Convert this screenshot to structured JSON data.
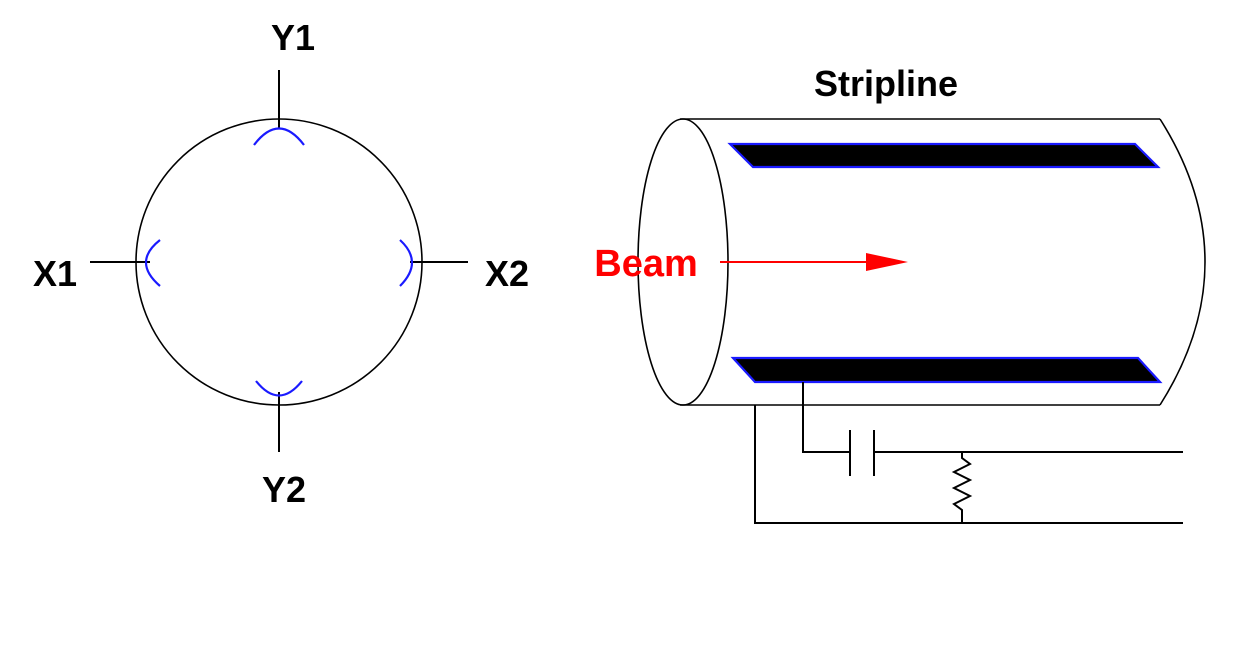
{
  "pickup": {
    "labels": {
      "y1": "Y1",
      "y2": "Y2",
      "x1": "X1",
      "x2": "X2"
    }
  },
  "stripline": {
    "title": "Stripline",
    "beam_label": "Beam"
  },
  "colors": {
    "electrode": "#1a1aff",
    "beam": "#ff0000",
    "line": "#000000",
    "strip_fill": "#000000"
  }
}
